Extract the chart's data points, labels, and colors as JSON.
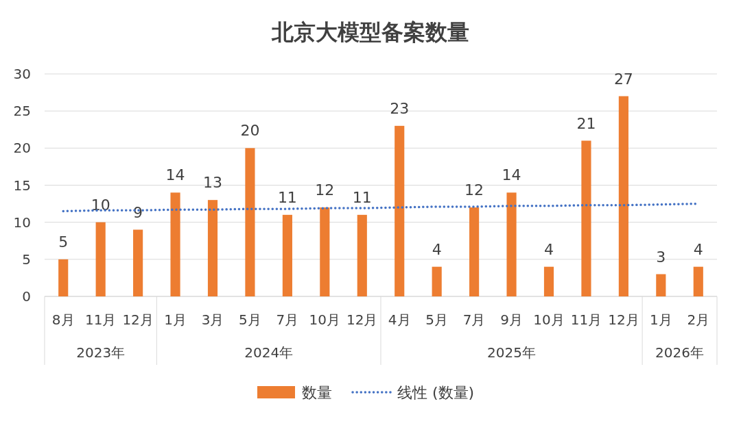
{
  "chart_data": {
    "type": "bar",
    "title": "北京大模型备案数量",
    "categories": [
      "8月",
      "11月",
      "12月",
      "1月",
      "3月",
      "5月",
      "7月",
      "10月",
      "12月",
      "4月",
      "5月",
      "7月",
      "9月",
      "10月",
      "11月",
      "12月",
      "1月",
      "2月"
    ],
    "annotations": [
      "2023年",
      "2024年",
      "2025年",
      "2026年"
    ],
    "series": [
      {
        "name": "数量",
        "color": "#ed7d31",
        "values": [
          5,
          10,
          9,
          14,
          13,
          20,
          11,
          12,
          11,
          23,
          4,
          12,
          14,
          4,
          21,
          27,
          3,
          4
        ],
        "value_labels": [
          "5",
          "10",
          "9",
          "14",
          "13",
          "20",
          "11",
          "12",
          "11",
          "23",
          "4",
          "12",
          "14",
          "4",
          "21",
          "27",
          "3",
          "4"
        ]
      },
      {
        "name": "线性 (数量)",
        "type": "line",
        "line_style": "dotted",
        "color": "#4472c4",
        "values": [
          11.5,
          11.6,
          11.6,
          11.7,
          11.7,
          11.8,
          11.8,
          11.9,
          11.9,
          12.0,
          12.1,
          12.1,
          12.2,
          12.2,
          12.3,
          12.3,
          12.4,
          12.5
        ]
      }
    ],
    "ylim": [
      0,
      30
    ],
    "yticks": [
      0,
      5,
      10,
      15,
      20,
      25,
      30
    ],
    "grid": "y",
    "legend": "bottom"
  }
}
